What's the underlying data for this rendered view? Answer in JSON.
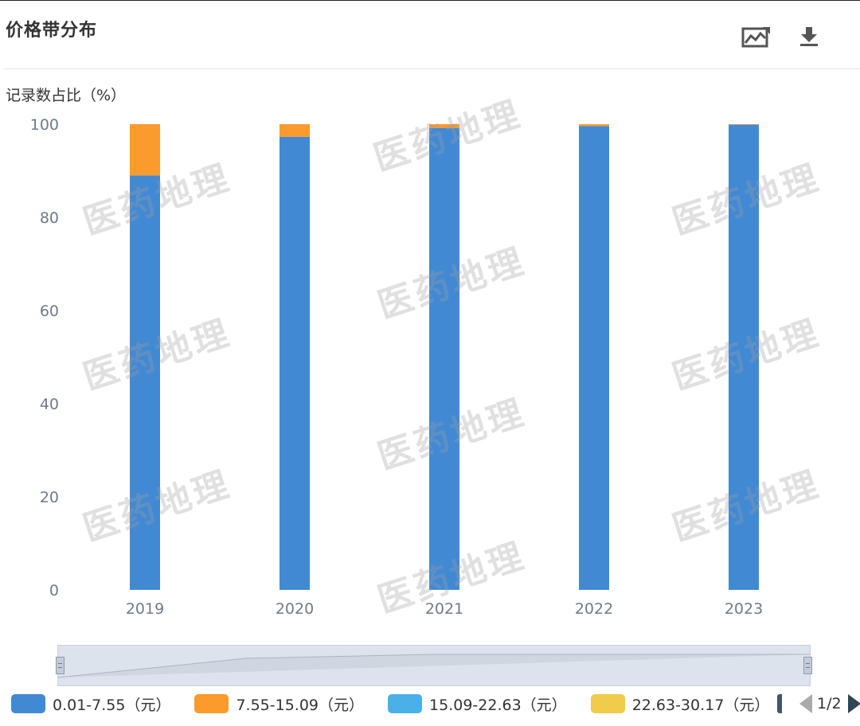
{
  "title": "价格带分布",
  "toolbar": {
    "save_image_icon": "chart-image-icon",
    "download_icon": "download-icon"
  },
  "watermark_text": "医药地理",
  "legend": {
    "items": [
      {
        "label": "0.01-7.55（元）",
        "color": "#4289d4"
      },
      {
        "label": "7.55-15.09（元）",
        "color": "#fb9a2d"
      },
      {
        "label": "15.09-22.63（元）",
        "color": "#4bb0e8"
      },
      {
        "label": "22.63-30.17（元）",
        "color": "#f1cb4b"
      }
    ],
    "page": "1/2"
  },
  "chart_data": {
    "type": "bar",
    "stacked": true,
    "ylabel": "记录数占比（%）",
    "ylim": [
      0,
      100
    ],
    "yticks": [
      0,
      20,
      40,
      60,
      80,
      100
    ],
    "categories": [
      "2019",
      "2020",
      "2021",
      "2022",
      "2023"
    ],
    "series": [
      {
        "name": "0.01-7.55（元）",
        "color": "#4289d4",
        "values": [
          89,
          97.3,
          99.2,
          99.6,
          99.9
        ]
      },
      {
        "name": "7.55-15.09（元）",
        "color": "#fb9a2d",
        "values": [
          11,
          2.7,
          0.8,
          0.4,
          0.1
        ]
      },
      {
        "name": "15.09-22.63（元）",
        "color": "#4bb0e8",
        "values": [
          0,
          0,
          0,
          0,
          0
        ]
      },
      {
        "name": "22.63-30.17（元）",
        "color": "#f1cb4b",
        "values": [
          0,
          0,
          0,
          0,
          0
        ]
      }
    ],
    "grid": false,
    "legend_position": "bottom"
  }
}
